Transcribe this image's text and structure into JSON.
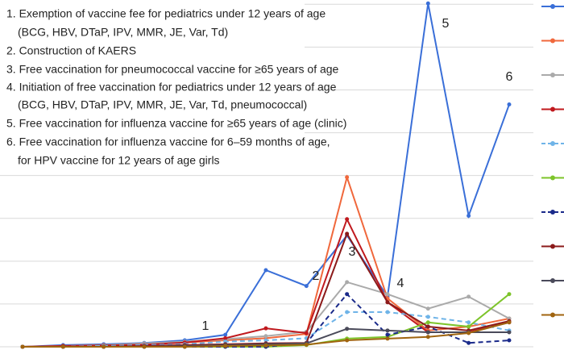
{
  "chart_data": {
    "type": "line",
    "categories": [
      null,
      null,
      null,
      null,
      null,
      null,
      null,
      null,
      null,
      null,
      null,
      null,
      null
    ],
    "ylim": [
      0,
      8.1
    ],
    "gridlines": [
      0,
      1,
      2,
      3,
      4,
      5,
      6,
      7,
      8
    ],
    "grid": true,
    "legend": "right",
    "notes": [
      "1. Exemption of vaccine fee for pediatrics under 12 years of age",
      "(BCG, HBV, DTaP, IPV, MMR, JE, Var, Td)",
      "2. Construction of KAERS",
      "3. Free vaccination for pneumococcal vaccine for ≥65 years of age",
      "4. Initiation of free vaccination for pediatrics under 12 years of age",
      "(BCG, HBV, DTaP, IPV, MMR, JE, Var, Td, pneumococcal)",
      "5. Free vaccination for influenza vaccine for ≥65 years of age (clinic)",
      "6. Free vaccination for influenza vaccine for 6–59 months of age,",
      "for HPV vaccine for 12 years of age girls"
    ],
    "markers": [
      "1",
      "2",
      "3",
      "4",
      "5",
      "6"
    ],
    "series": [
      {
        "color": "#3a6fd8",
        "dashed": false,
        "values": [
          0,
          0.04,
          0.06,
          0.09,
          0.15,
          0.28,
          1.79,
          1.42,
          2.6,
          1.17,
          8.02,
          3.06,
          5.66
        ]
      },
      {
        "color": "#f0683c",
        "dashed": false,
        "values": [
          0,
          0.02,
          0.04,
          0.06,
          0.1,
          0.15,
          0.2,
          0.3,
          3.96,
          1.13,
          0.38,
          0.47,
          0.66
        ]
      },
      {
        "color": "#aaaaaa",
        "dashed": false,
        "values": [
          0,
          0.02,
          0.04,
          0.08,
          0.12,
          0.18,
          0.25,
          0.35,
          1.51,
          1.23,
          0.89,
          1.17,
          0.66
        ]
      },
      {
        "color": "#c0191e",
        "dashed": false,
        "values": [
          0,
          0.02,
          0.03,
          0.05,
          0.1,
          0.2,
          0.43,
          0.32,
          2.98,
          1.04,
          0.34,
          0.34,
          0.57
        ]
      },
      {
        "color": "#6fb4e8",
        "dashed": true,
        "values": [
          0,
          0,
          0.02,
          0.04,
          0.06,
          0.12,
          0.15,
          0.2,
          0.81,
          0.81,
          0.7,
          0.57,
          0.38
        ]
      },
      {
        "color": "#7dc42a",
        "dashed": false,
        "values": [
          0,
          0,
          0,
          0,
          0,
          0,
          0,
          0.04,
          0.19,
          0.23,
          0.57,
          0.47,
          1.23
        ]
      },
      {
        "color": "#1a2a8a",
        "dashed": true,
        "values": [
          0,
          0,
          0,
          0,
          0,
          0,
          0,
          0.09,
          1.23,
          0.28,
          0.47,
          0.09,
          0.15
        ]
      },
      {
        "color": "#8b1a1a",
        "dashed": false,
        "values": [
          0,
          0,
          0,
          0.02,
          0.04,
          0.06,
          0.08,
          0.09,
          2.64,
          1.04,
          0.47,
          0.38,
          0.6
        ]
      },
      {
        "color": "#4a4a5a",
        "dashed": false,
        "values": [
          0,
          0,
          0,
          0,
          0.02,
          0.04,
          0.06,
          0.08,
          0.42,
          0.38,
          0.34,
          0.34,
          0.34
        ]
      },
      {
        "color": "#a0640f",
        "dashed": false,
        "values": [
          0,
          0,
          0,
          0,
          0,
          0.02,
          0.03,
          0.05,
          0.15,
          0.19,
          0.23,
          0.32,
          0.57
        ]
      }
    ]
  }
}
